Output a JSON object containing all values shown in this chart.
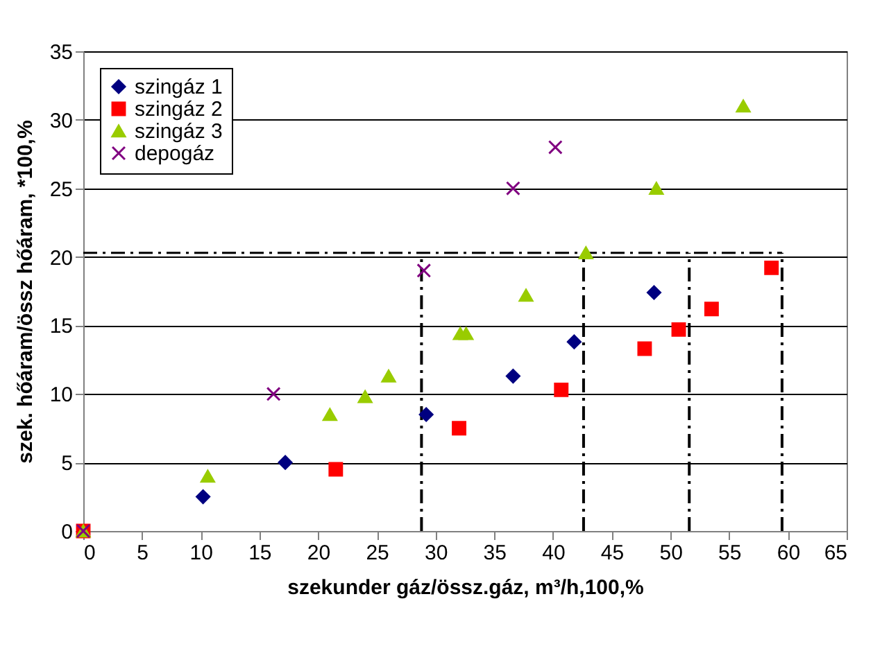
{
  "chart_data": {
    "type": "scatter",
    "xlabel": "szekunder gáz/össz.gáz, m³/h,100,%",
    "ylabel": "szek. hőáram/össz hőáram, *100,%",
    "xlim": [
      0,
      65
    ],
    "xticks": [
      0,
      5,
      10,
      15,
      20,
      25,
      30,
      35,
      40,
      45,
      50,
      55,
      60,
      65
    ],
    "ylim": [
      0,
      35
    ],
    "yticks": [
      0,
      5,
      10,
      15,
      20,
      25,
      30,
      35
    ],
    "grid": "y",
    "legend": "top left",
    "series": [
      {
        "name": "szingáz 1",
        "color": "#000080",
        "marker": "diamond",
        "x": [
          null,
          10.2,
          17.2,
          29.2,
          36.6,
          41.8,
          48.6
        ],
        "values": [
          null,
          2.5,
          5,
          8.5,
          11.3,
          13.8,
          17.4
        ]
      },
      {
        "name": "szingáz 2",
        "color": "#ff0000",
        "marker": "square",
        "x": [
          0,
          21.5,
          32.0,
          40.7,
          47.8,
          50.7,
          53.5,
          58.6
        ],
        "values": [
          0,
          4.5,
          7.5,
          10.3,
          13.3,
          14.7,
          16.2,
          19.2
        ]
      },
      {
        "name": "szingáz 3",
        "color": "#99cc00",
        "marker": "triangle",
        "x": [
          0,
          10.6,
          21,
          24,
          26,
          32.1,
          32.6,
          37.7,
          42.8,
          48.8,
          56.2
        ],
        "values": [
          0,
          4,
          8.5,
          9.8,
          11.3,
          14.4,
          14.4,
          17.2,
          20.3,
          25,
          31
        ]
      },
      {
        "name": "depogáz",
        "color": "#800080",
        "marker": "cross",
        "x": [
          0,
          16.2,
          29.0,
          36.6,
          40.2
        ],
        "values": [
          0,
          10,
          19,
          25,
          28
        ]
      }
    ],
    "ref_lines": [
      {
        "axis": "y",
        "value": 20.3,
        "color": "#000000",
        "line_style": "dashdot"
      },
      {
        "axis": "x",
        "value": 28.8,
        "color": "#000000",
        "line_style": "dashdot"
      },
      {
        "axis": "x",
        "value": 42.6,
        "color": "#000000",
        "line_style": "dashdot"
      },
      {
        "axis": "x",
        "value": 51.6,
        "color": "#000000",
        "line_style": "dashdot"
      },
      {
        "axis": "x",
        "value": 59.5,
        "color": "#000000",
        "line_style": "dashdot"
      }
    ]
  }
}
